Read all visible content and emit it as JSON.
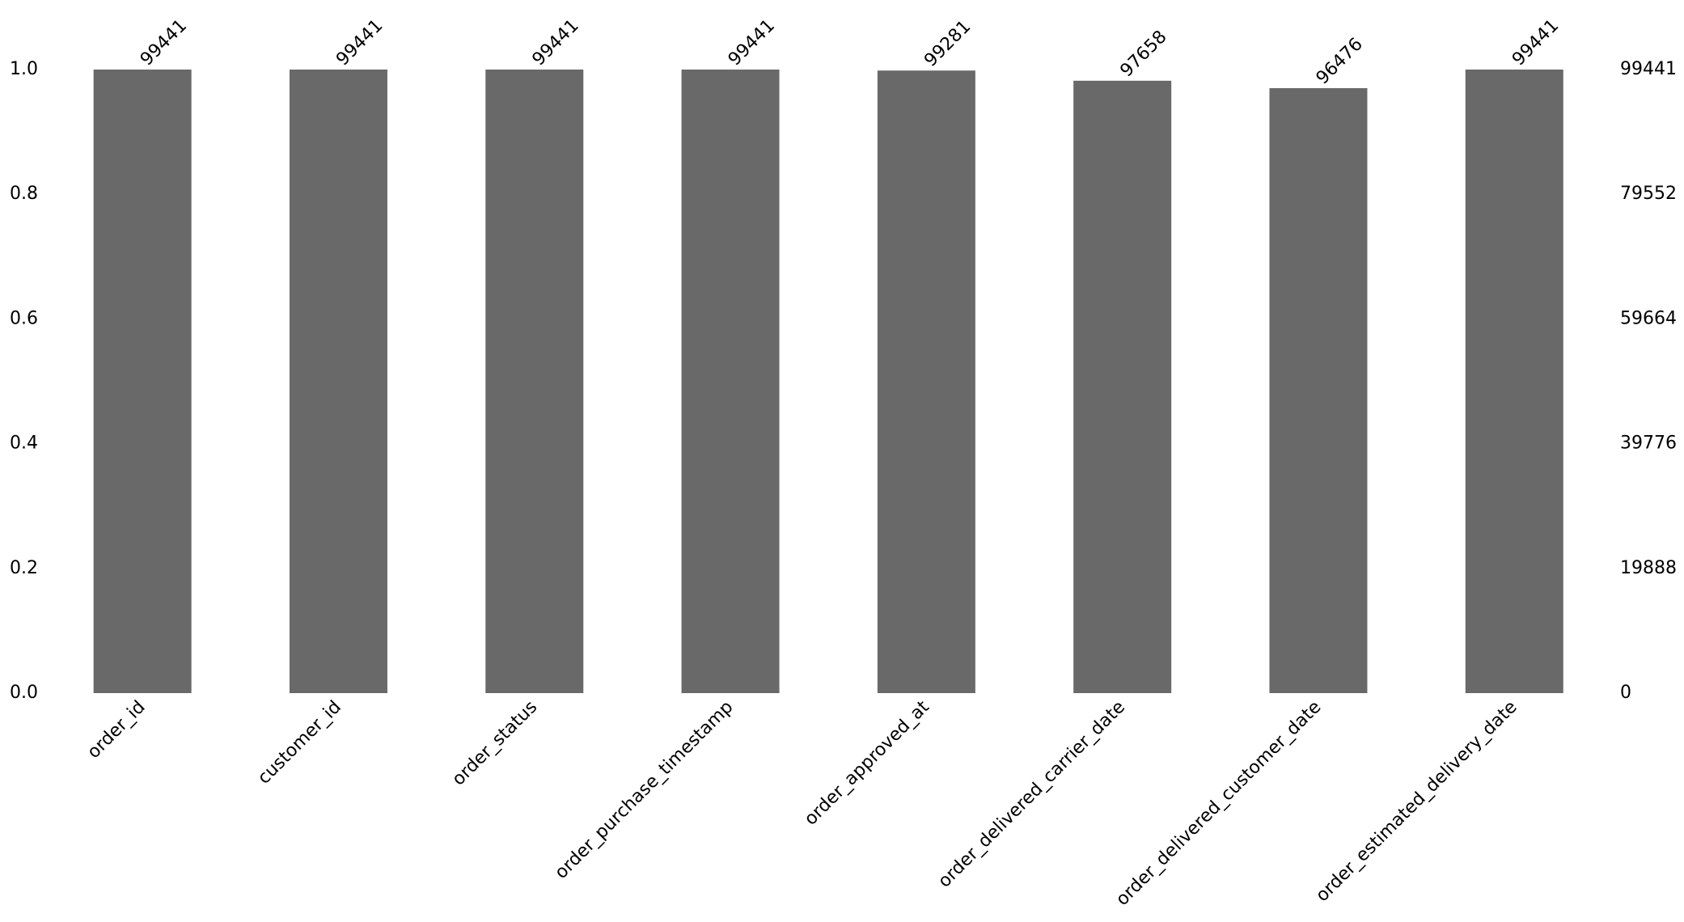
{
  "chart_data": {
    "type": "bar",
    "categories": [
      "order_id",
      "customer_id",
      "order_status",
      "order_purchase_timestamp",
      "order_approved_at",
      "order_delivered_carrier_date",
      "order_delivered_customer_date",
      "order_estimated_delivery_date"
    ],
    "series": [
      {
        "color": "#696969",
        "axis": "y2",
        "values": [
          99441,
          99441,
          99441,
          99441,
          99281,
          97658,
          96476,
          99441
        ]
      }
    ],
    "ylim": [
      0,
      1
    ],
    "yticks": [
      {
        "value": 0,
        "label": "0.0"
      },
      {
        "value": 0.2,
        "label": "0.2"
      },
      {
        "value": 0.4,
        "label": "0.4"
      },
      {
        "value": 0.6,
        "label": "0.6"
      },
      {
        "value": 0.8,
        "label": "0.8"
      },
      {
        "value": 1,
        "label": "1.0"
      }
    ],
    "y2lim": [
      0,
      99441
    ],
    "y2ticks": [
      0,
      19888,
      39776,
      59664,
      79552,
      99441
    ],
    "grid": false
  }
}
